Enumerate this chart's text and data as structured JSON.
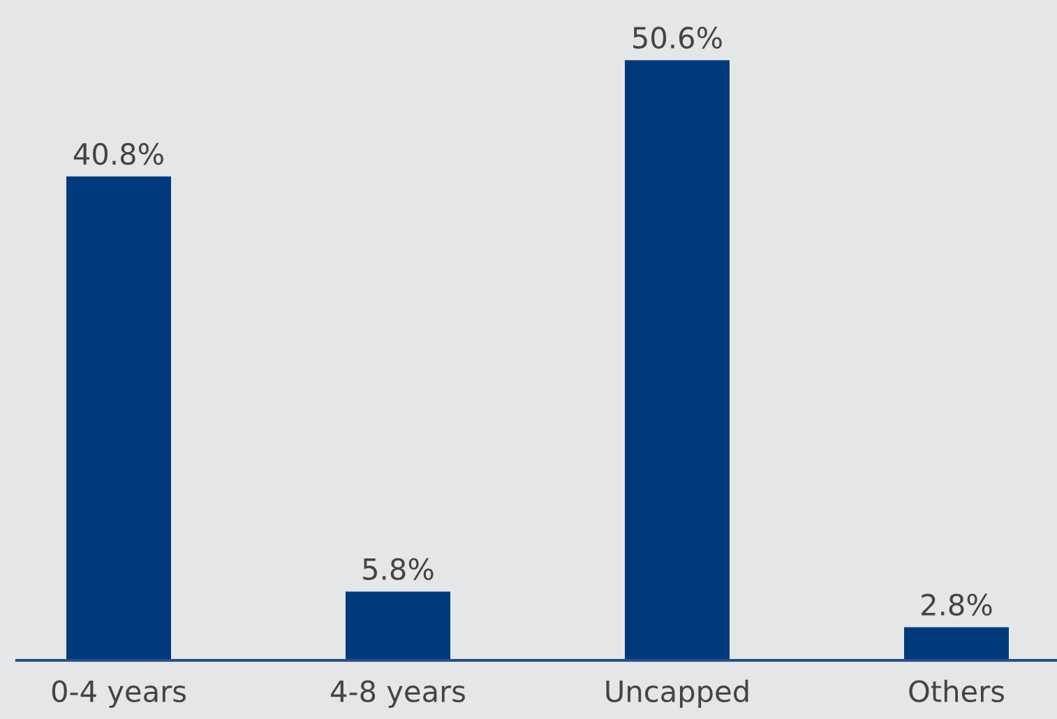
{
  "chart_data": {
    "type": "bar",
    "categories": [
      "0-4 years",
      "4-8 years",
      "Uncapped",
      "Others"
    ],
    "values": [
      40.8,
      5.8,
      50.6,
      2.8
    ],
    "value_labels": [
      "40.8%",
      "5.8%",
      "50.6%",
      "2.8%"
    ],
    "color": "#003a7d",
    "grid": false,
    "legend": false
  }
}
